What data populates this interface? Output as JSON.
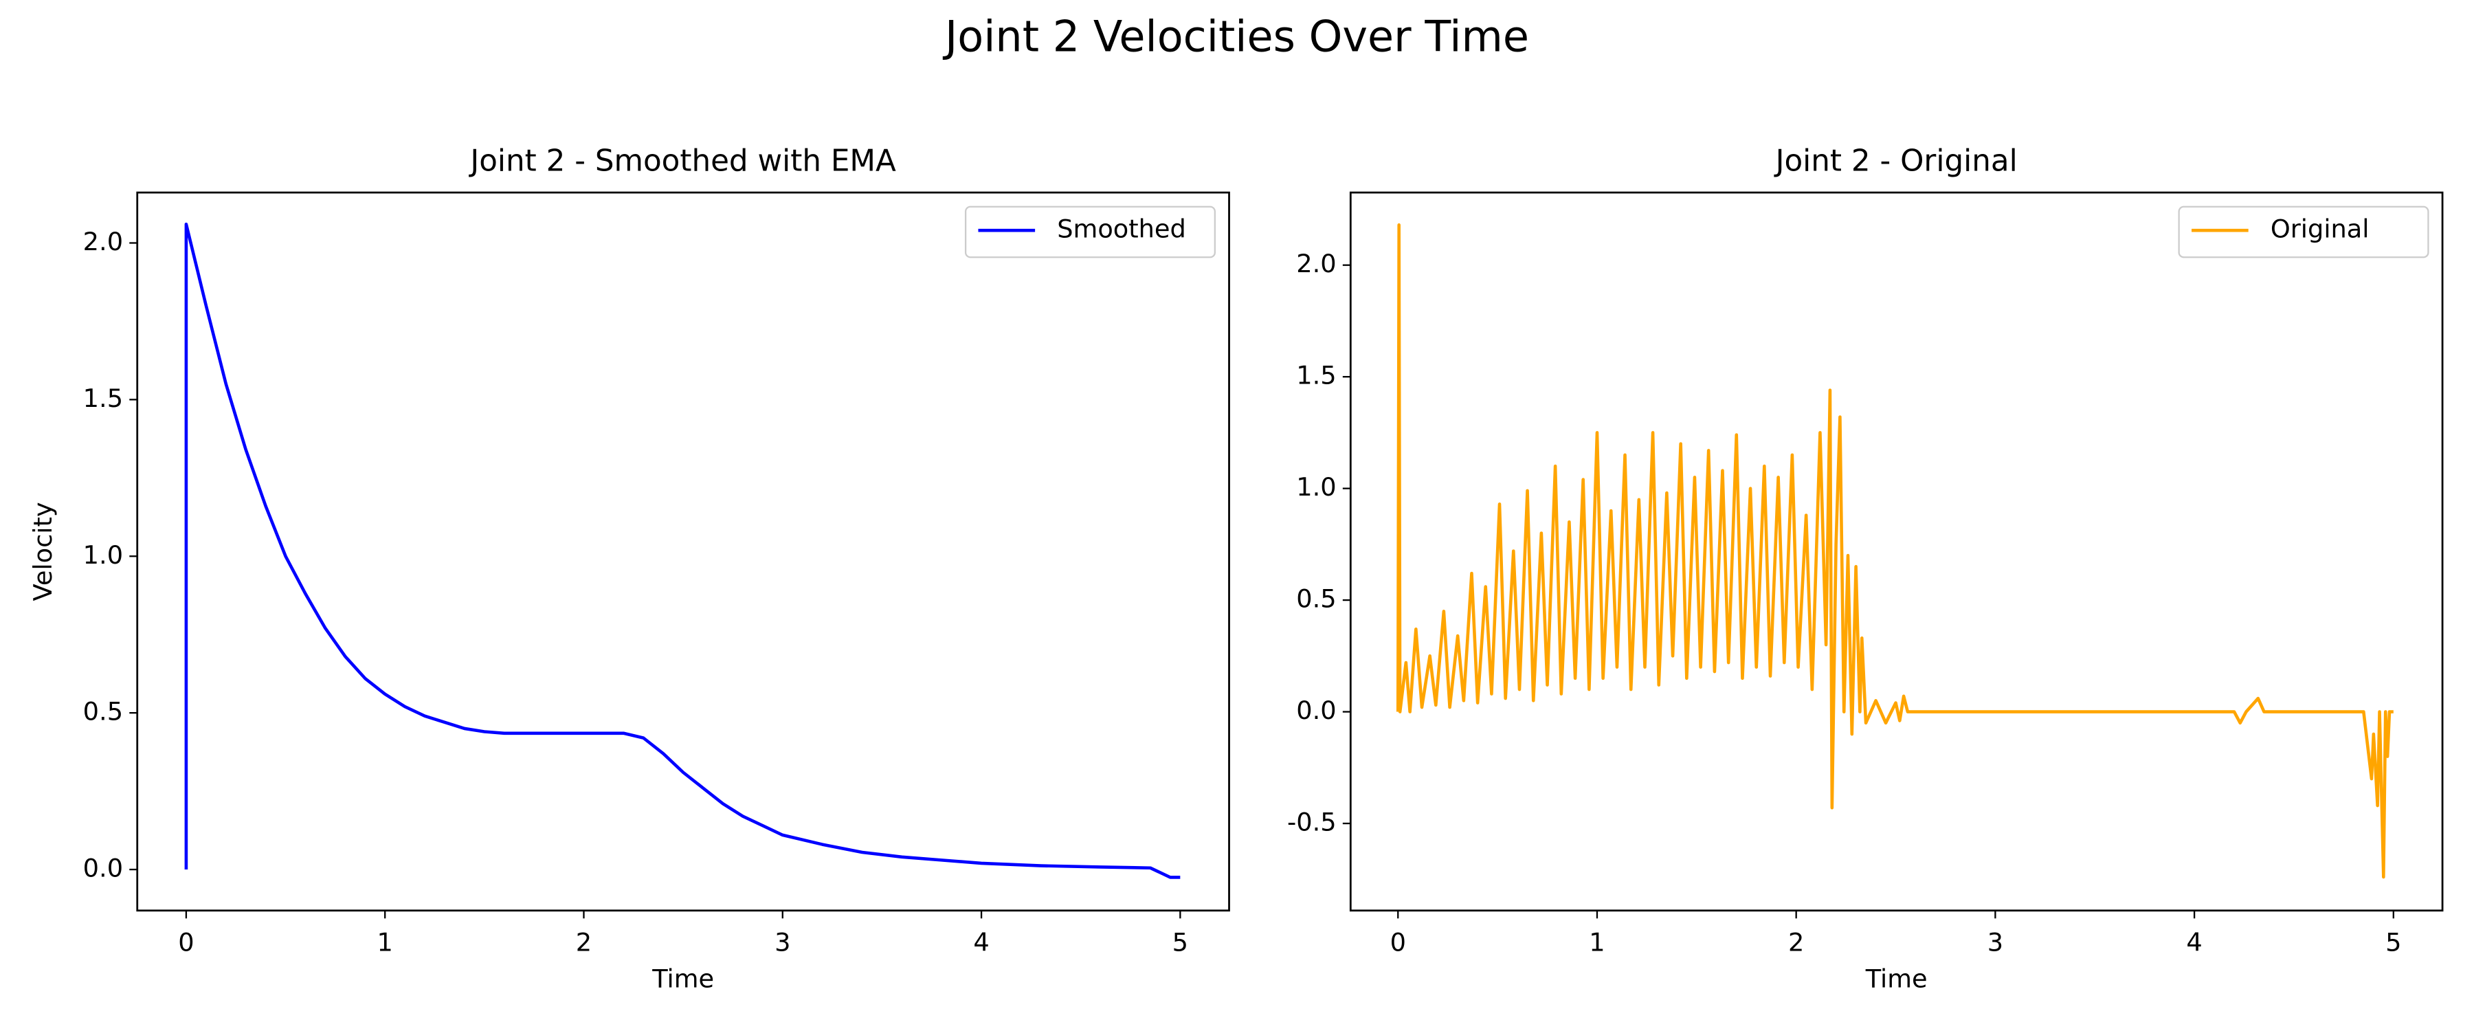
{
  "title": "Joint 2 Velocities Over Time",
  "chart_data": [
    {
      "type": "line",
      "title": "Joint 2 - Smoothed with EMA",
      "xlabel": "Time",
      "ylabel": "Velocity",
      "x": [
        0,
        0,
        0.1,
        0.2,
        0.3,
        0.4,
        0.5,
        0.6,
        0.7,
        0.8,
        0.9,
        1.0,
        1.1,
        1.2,
        1.3,
        1.4,
        1.5,
        1.6,
        1.8,
        2.0,
        2.2,
        2.3,
        2.4,
        2.5,
        2.6,
        2.7,
        2.8,
        2.9,
        3.0,
        3.2,
        3.4,
        3.6,
        3.8,
        4.0,
        4.3,
        4.6,
        4.85,
        4.9,
        4.95,
        5.0
      ],
      "series": [
        {
          "name": "Smoothed",
          "color": "#0000ff",
          "values": [
            0,
            2.06,
            1.8,
            1.55,
            1.34,
            1.16,
            1.0,
            0.88,
            0.77,
            0.68,
            0.61,
            0.56,
            0.52,
            0.49,
            0.47,
            0.45,
            0.44,
            0.435,
            0.435,
            0.435,
            0.435,
            0.42,
            0.37,
            0.31,
            0.26,
            0.21,
            0.17,
            0.14,
            0.11,
            0.08,
            0.055,
            0.04,
            0.03,
            0.02,
            0.012,
            0.008,
            0.005,
            -0.01,
            -0.025,
            -0.025
          ]
        }
      ],
      "xlim": [
        -0.246,
        5.246
      ],
      "ylim": [
        -0.131,
        2.161
      ],
      "xticks": [
        0,
        1,
        2,
        3,
        4,
        5
      ],
      "yticks": [
        {
          "value": 0,
          "label": "0.0"
        },
        0.5,
        {
          "value": 1,
          "label": "1.0"
        },
        1.5,
        {
          "value": 2,
          "label": "2.0"
        }
      ],
      "legend": "upper right"
    },
    {
      "type": "line",
      "title": "Joint 2 - Original",
      "xlabel": "Time",
      "x": [
        0,
        0.005,
        0.01,
        0.04,
        0.06,
        0.09,
        0.12,
        0.16,
        0.19,
        0.23,
        0.26,
        0.3,
        0.33,
        0.37,
        0.4,
        0.44,
        0.47,
        0.51,
        0.54,
        0.58,
        0.61,
        0.65,
        0.68,
        0.72,
        0.75,
        0.79,
        0.82,
        0.86,
        0.89,
        0.93,
        0.96,
        1.0,
        1.03,
        1.07,
        1.1,
        1.14,
        1.17,
        1.21,
        1.24,
        1.28,
        1.31,
        1.35,
        1.38,
        1.42,
        1.45,
        1.49,
        1.52,
        1.56,
        1.59,
        1.63,
        1.66,
        1.7,
        1.73,
        1.77,
        1.8,
        1.84,
        1.87,
        1.91,
        1.94,
        1.98,
        2.01,
        2.05,
        2.08,
        2.12,
        2.15,
        2.17,
        2.18,
        2.2,
        2.22,
        2.24,
        2.26,
        2.28,
        2.3,
        2.32,
        2.33,
        2.35,
        2.4,
        2.45,
        2.5,
        2.52,
        2.54,
        2.56,
        4.2,
        4.23,
        4.26,
        4.32,
        4.35,
        4.85,
        4.87,
        4.89,
        4.9,
        4.92,
        4.93,
        4.95,
        4.96,
        4.97,
        4.98,
        5.0
      ],
      "series": [
        {
          "name": "Original",
          "color": "#ffa500",
          "values": [
            0,
            2.18,
            0,
            0.22,
            0,
            0.37,
            0.02,
            0.25,
            0.03,
            0.45,
            0.02,
            0.34,
            0.05,
            0.62,
            0.04,
            0.56,
            0.08,
            0.93,
            0.06,
            0.72,
            0.1,
            0.99,
            0.05,
            0.8,
            0.12,
            1.1,
            0.08,
            0.85,
            0.15,
            1.04,
            0.1,
            1.25,
            0.15,
            0.9,
            0.2,
            1.15,
            0.1,
            0.95,
            0.2,
            1.25,
            0.12,
            0.98,
            0.25,
            1.2,
            0.15,
            1.05,
            0.2,
            1.17,
            0.18,
            1.08,
            0.22,
            1.24,
            0.15,
            1.0,
            0.2,
            1.1,
            0.16,
            1.05,
            0.22,
            1.15,
            0.2,
            0.88,
            0.1,
            1.25,
            0.3,
            1.44,
            -0.43,
            0.75,
            1.32,
            0.0,
            0.7,
            -0.1,
            0.65,
            0.0,
            0.33,
            -0.05,
            0.05,
            -0.05,
            0.04,
            -0.04,
            0.07,
            0,
            0,
            -0.05,
            0,
            0.06,
            0,
            0,
            -0.15,
            -0.3,
            -0.1,
            -0.42,
            0,
            -0.74,
            0,
            -0.2,
            0,
            0
          ]
        }
      ],
      "xlim": [
        -0.238,
        5.246
      ],
      "ylim": [
        -0.89,
        2.325
      ],
      "xticks": [
        0,
        1,
        2,
        3,
        4,
        5
      ],
      "yticks": [
        -0.5,
        {
          "value": 0,
          "label": "0.0"
        },
        0.5,
        {
          "value": 1,
          "label": "1.0"
        },
        1.5,
        {
          "value": 2,
          "label": "2.0"
        }
      ],
      "legend": "upper right"
    }
  ]
}
